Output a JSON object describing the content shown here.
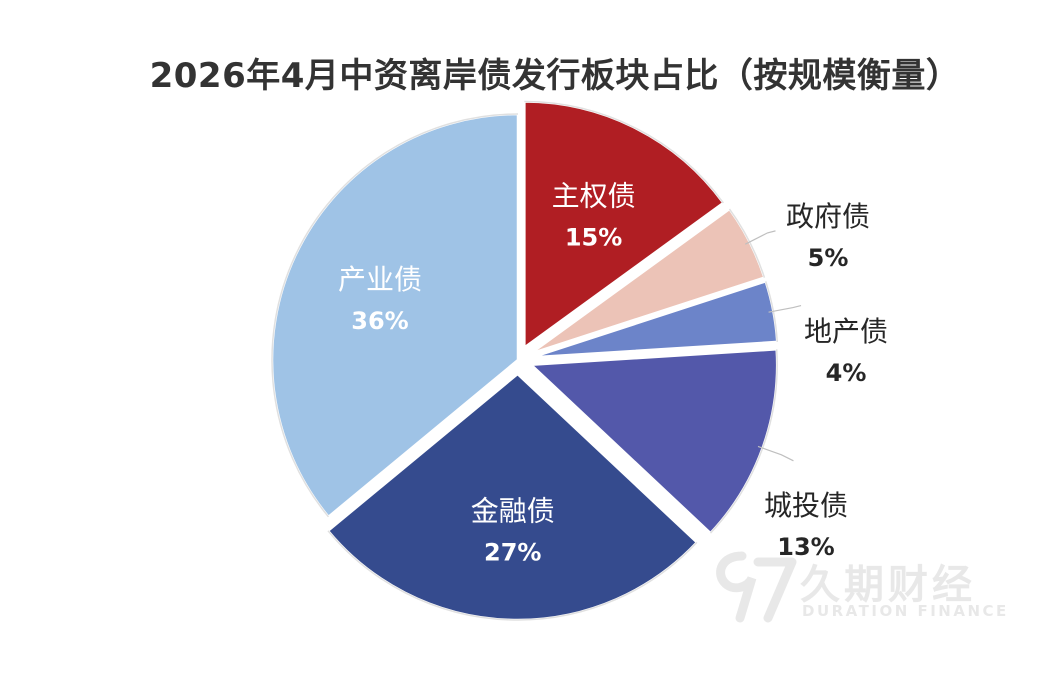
{
  "chart_data": {
    "type": "pie",
    "title": "2026年4月中资离岸债发行板块占比（按规模衡量）",
    "slices": [
      {
        "name": "主权债",
        "label": "15%",
        "value": 15,
        "color": "#B01E23",
        "text_color": "#ffffff",
        "explode": true
      },
      {
        "name": "政府债",
        "label": "5%",
        "value": 5,
        "color": "#ECC3B7",
        "text_color": "#262626",
        "explode": true
      },
      {
        "name": "地产债",
        "label": "4%",
        "value": 4,
        "color": "#6C84C9",
        "text_color": "#262626",
        "explode": true
      },
      {
        "name": "城投债",
        "label": "13%",
        "value": 13,
        "color": "#5358AA",
        "text_color": "#262626",
        "explode": true
      },
      {
        "name": "金融债",
        "label": "27%",
        "value": 27,
        "color": "#354B8E",
        "text_color": "#ffffff",
        "explode": true
      },
      {
        "name": "产业债",
        "label": "36%",
        "value": 36,
        "color": "#9FC3E6",
        "text_color": "#ffffff",
        "explode": false
      }
    ],
    "legend": "none"
  },
  "watermark": {
    "brand_cn": "久期财经",
    "brand_en": "DURATION FINANCE"
  }
}
